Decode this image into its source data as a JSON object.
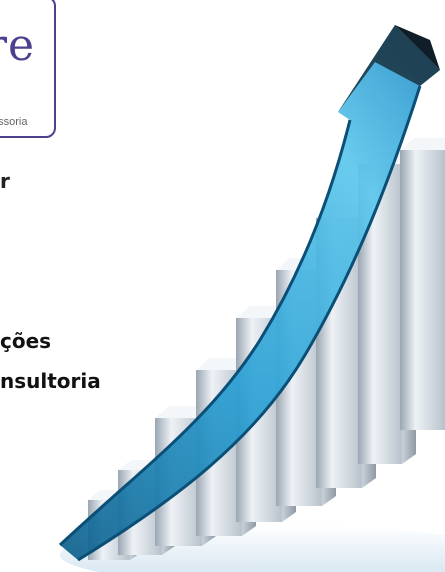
{
  "logo": {
    "mark": "re",
    "subtitle": "essoria"
  },
  "headline": {
    "line1": "r",
    "line2": "ções",
    "line3": "nsultoria"
  },
  "graphic": {
    "icon": "growth-bar-chart-with-arrow",
    "arrow_color": "#3aa8d8",
    "bar_color": "#dfe4ea"
  }
}
